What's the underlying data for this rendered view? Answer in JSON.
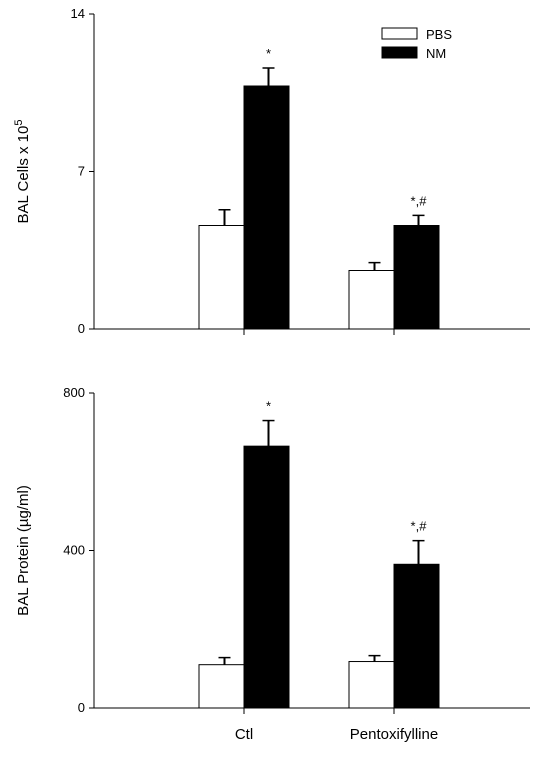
{
  "chart_data": [
    {
      "type": "bar",
      "ylabel": "BAL Cells x 10",
      "ylabel_superscript": "5",
      "ylim": [
        0,
        14
      ],
      "yticks": [
        "0",
        "7",
        "14"
      ],
      "categories": [
        "Ctl",
        "Pentoxifylline"
      ],
      "show_category_labels": false,
      "series": [
        {
          "name": "PBS",
          "color": "#ffffff",
          "values": [
            4.6,
            2.6
          ],
          "errors": [
            0.7,
            0.35
          ]
        },
        {
          "name": "NM",
          "color": "#000000",
          "values": [
            10.8,
            4.6
          ],
          "errors": [
            0.8,
            0.45
          ]
        }
      ],
      "annotations": [
        "*",
        "*,#"
      ],
      "legend_placement": "top-right",
      "grid": false
    },
    {
      "type": "bar",
      "ylabel": "BAL Protein (µg/ml)",
      "ylim": [
        0,
        800
      ],
      "yticks": [
        "0",
        "400",
        "800"
      ],
      "categories": [
        "Ctl",
        "Pentoxifylline"
      ],
      "show_category_labels": true,
      "series": [
        {
          "name": "PBS",
          "color": "#ffffff",
          "values": [
            110,
            118
          ],
          "errors": [
            18,
            15
          ]
        },
        {
          "name": "NM",
          "color": "#000000",
          "values": [
            665,
            365
          ],
          "errors": [
            65,
            60
          ]
        }
      ],
      "annotations": [
        "*",
        "*,#"
      ],
      "grid": false
    }
  ]
}
